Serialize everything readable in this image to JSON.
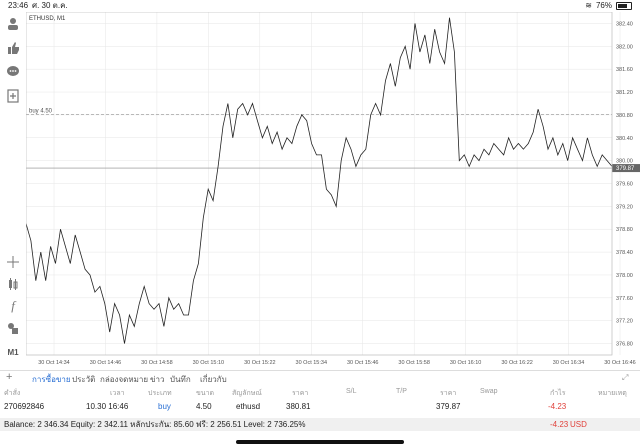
{
  "status_bar": {
    "time": "23:46",
    "date": "ศ. 30 ต.ค.",
    "battery": "76%",
    "battery_level": 0.76
  },
  "toolbar": {
    "icons": [
      "person-icon",
      "thumbs-icon",
      "chat-icon",
      "add-document-icon",
      "crosshair-icon",
      "candles-icon",
      "function-icon",
      "objects-icon"
    ],
    "timeframe": "M1"
  },
  "chart": {
    "symbol_label": "ETHUSD, M1",
    "buy_line_label": "buy 4.50",
    "buy_price": 380.81,
    "current_price": 379.87,
    "current_price_label": "379.87",
    "y_ticks": [
      "382.40",
      "382.00",
      "381.60",
      "381.20",
      "380.80",
      "380.40",
      "380.00",
      "379.60",
      "379.20",
      "378.80",
      "378.40",
      "378.00",
      "377.60",
      "377.20",
      "376.80"
    ],
    "x_ticks": [
      "30 Oct 14:34",
      "30 Oct 14:46",
      "30 Oct 14:58",
      "30 Oct 15:10",
      "30 Oct 15:22",
      "30 Oct 15:34",
      "30 Oct 15:46",
      "30 Oct 15:58",
      "30 Oct 16:10",
      "30 Oct 16:22",
      "30 Oct 16:34",
      "30 Oct 16:46"
    ]
  },
  "chart_data": {
    "type": "line",
    "title": "ETHUSD, M1",
    "ylim": [
      376.6,
      382.6
    ],
    "grid": true,
    "y": [
      378.9,
      378.6,
      377.9,
      378.4,
      377.9,
      378.5,
      378.2,
      378.8,
      378.5,
      378.2,
      378.7,
      378.4,
      378.1,
      378.0,
      377.7,
      377.8,
      377.5,
      377.0,
      377.5,
      377.3,
      376.8,
      377.3,
      377.1,
      377.5,
      377.8,
      377.5,
      377.4,
      377.5,
      377.1,
      377.6,
      377.4,
      377.5,
      377.3,
      377.3,
      377.9,
      378.2,
      379.0,
      379.5,
      379.3,
      379.9,
      380.6,
      381.0,
      380.4,
      380.9,
      381.0,
      380.8,
      381.0,
      380.7,
      380.4,
      380.6,
      380.3,
      380.5,
      380.2,
      380.4,
      380.3,
      380.6,
      380.8,
      380.7,
      380.3,
      380.1,
      380.1,
      379.5,
      379.4,
      379.2,
      380.0,
      380.4,
      380.2,
      379.9,
      380.1,
      380.2,
      380.8,
      381.0,
      380.8,
      381.4,
      381.7,
      381.3,
      381.8,
      382.0,
      381.6,
      382.4,
      381.9,
      382.2,
      381.7,
      382.3,
      381.9,
      381.7,
      382.5,
      381.9,
      380.0,
      380.1,
      379.9,
      380.1,
      380.0,
      380.2,
      380.1,
      380.3,
      380.2,
      380.1,
      380.4,
      380.2,
      380.3,
      380.2,
      380.3,
      380.5,
      380.9,
      380.6,
      380.2,
      380.4,
      380.1,
      380.3,
      380.0,
      380.4,
      380.2,
      380.0,
      380.4,
      380.1,
      379.9,
      380.1,
      380.0,
      379.9
    ]
  },
  "tabs": [
    {
      "label": "การซื้อขาย",
      "active": true
    },
    {
      "label": "ประวัติ",
      "active": false
    },
    {
      "label": "กล่องจดหมาย",
      "active": false
    },
    {
      "label": "ข่าว",
      "active": false
    },
    {
      "label": "บันทึก",
      "active": false
    },
    {
      "label": "เกี่ยวกับ",
      "active": false
    }
  ],
  "table": {
    "headers": [
      "คำสั่ง",
      "เวลา",
      "ประเภท",
      "ขนาด",
      "สัญลักษณ์",
      "ราคา",
      "S/L",
      "T/P",
      "ราคา",
      "Swap",
      "กำไร",
      "หมายเหตุ"
    ],
    "rows": [
      {
        "order": "270692846",
        "time": "10.30 16:46",
        "type": "buy",
        "size": "4.50",
        "symbol": "ethusd",
        "price": "380.81",
        "sl": "",
        "tp": "",
        "current": "379.87",
        "swap": "",
        "profit": "-4.23",
        "comment": ""
      }
    ]
  },
  "balance": {
    "text": "Balance: 2 346.34 Equity: 2 342.11 หลักประกัน: 85.60 ฟรี: 2 256.51 Level: 2 736.25%",
    "profit": "-4.23",
    "currency": "USD"
  },
  "colors": {
    "accent": "#2a70d4",
    "loss": "#e0403a",
    "line": "#222222",
    "grid": "#e6e6e6"
  }
}
